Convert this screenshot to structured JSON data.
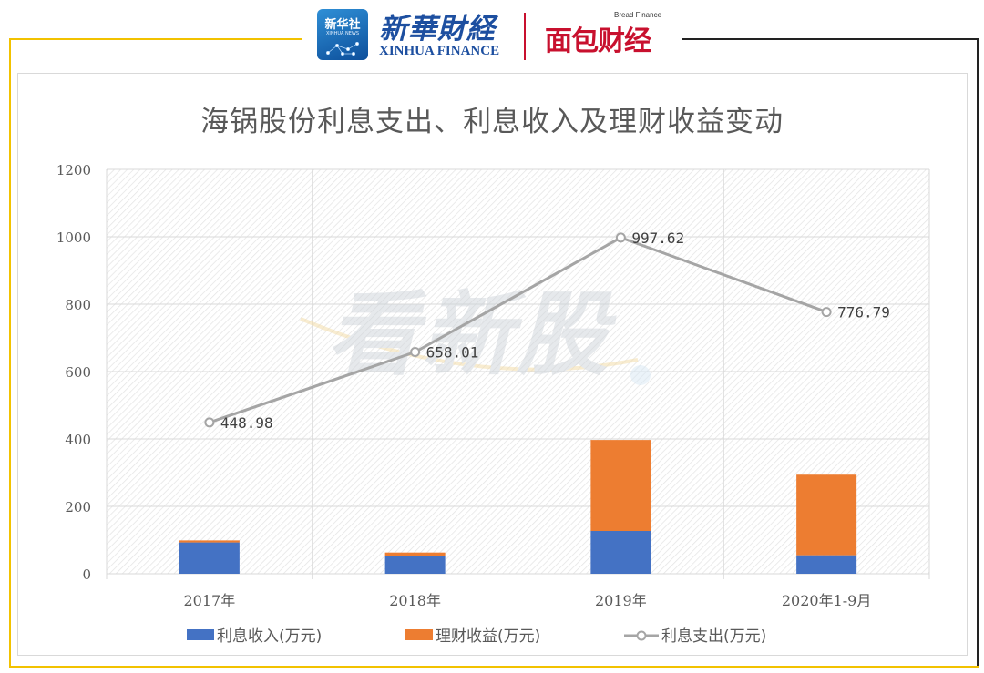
{
  "header": {
    "xinhua_logo_cn": "新华社",
    "xinhua_logo_en": "XINHUA NEWS",
    "xinhua_finance_cn": "新華財経",
    "xinhua_finance_en": "XINHUA FINANCE",
    "bread_finance_en": "Bread Finance",
    "bread_finance_cn": "面包财经"
  },
  "watermark": {
    "text": "看新股"
  },
  "colors": {
    "income": "#4472c4",
    "wealth": "#ed7d31",
    "expense": "#a5a5a5",
    "frame_accent": "#f2c200"
  },
  "chart_data": {
    "type": "bar",
    "stacked": true,
    "title": "海锅股份利息支出、利息收入及理财收益变动",
    "categories": [
      "2017年",
      "2018年",
      "2019年",
      "2020年1-9月"
    ],
    "ylim": [
      0,
      1200
    ],
    "yticks": [
      0,
      200,
      400,
      600,
      800,
      1000,
      1200
    ],
    "grid": true,
    "legend_position": "bottom",
    "series": [
      {
        "name": "利息收入(万元)",
        "type": "bar",
        "values": [
          93,
          52,
          127,
          55
        ]
      },
      {
        "name": "理财收益(万元)",
        "type": "bar",
        "values": [
          6,
          11,
          270,
          239
        ]
      },
      {
        "name": "利息支出(万元)",
        "type": "line",
        "values": [
          448.98,
          658.01,
          997.62,
          776.79
        ],
        "labels": [
          "448.98",
          "658.01",
          "997.62",
          "776.79"
        ]
      }
    ]
  }
}
